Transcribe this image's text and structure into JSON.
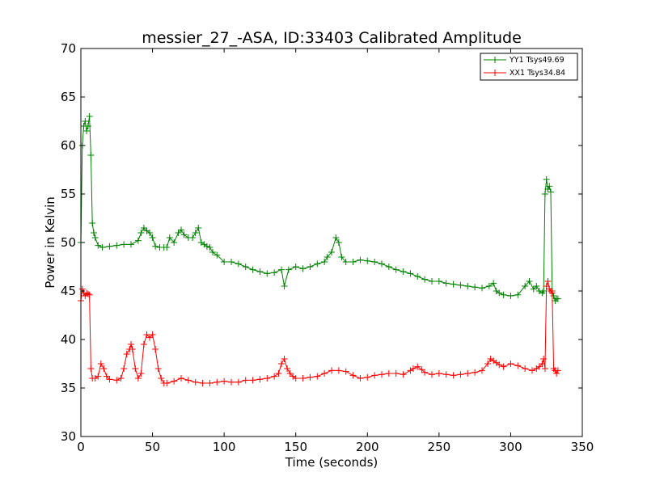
{
  "chart_data": {
    "type": "line",
    "title": "messier_27_-ASA, ID:33403 Calibrated Amplitude",
    "xlabel": "Time (seconds)",
    "ylabel": "Power in Kelvin",
    "xlim": [
      0,
      350
    ],
    "ylim": [
      30,
      70
    ],
    "xticks": [
      0,
      50,
      100,
      150,
      200,
      250,
      300,
      350
    ],
    "yticks": [
      30,
      35,
      40,
      45,
      50,
      55,
      60,
      65,
      70
    ],
    "grid": false,
    "legend_position": "top-right",
    "marker": "+",
    "series": [
      {
        "name": "YY1 Tsys49.69",
        "color": "#008000",
        "x": [
          0,
          1,
          2,
          3,
          4,
          5,
          6,
          7,
          8,
          9,
          10,
          12,
          15,
          20,
          25,
          30,
          35,
          40,
          42,
          44,
          46,
          48,
          50,
          52,
          55,
          58,
          60,
          62,
          65,
          68,
          70,
          72,
          75,
          78,
          80,
          82,
          84,
          86,
          88,
          90,
          92,
          95,
          100,
          105,
          110,
          115,
          120,
          125,
          130,
          135,
          140,
          142,
          145,
          150,
          155,
          160,
          165,
          170,
          172,
          175,
          178,
          180,
          182,
          185,
          190,
          195,
          200,
          205,
          210,
          215,
          220,
          225,
          230,
          235,
          240,
          245,
          250,
          255,
          260,
          265,
          270,
          275,
          280,
          285,
          288,
          290,
          292,
          295,
          300,
          305,
          310,
          313,
          316,
          318,
          320,
          322,
          323,
          324,
          325,
          326,
          327,
          328,
          329,
          330,
          331,
          332,
          333
        ],
        "values": [
          50,
          60,
          62,
          62.5,
          61.5,
          62,
          63,
          59,
          52,
          51,
          50.5,
          49.7,
          49.5,
          49.6,
          49.7,
          49.8,
          49.8,
          50.2,
          51,
          51.5,
          51.2,
          51,
          50.5,
          49.6,
          49.5,
          49.5,
          49.5,
          50.5,
          50,
          51,
          51.3,
          50.8,
          50.5,
          50.5,
          51,
          51.5,
          50,
          49.8,
          49.6,
          49.5,
          49,
          48.7,
          48,
          48,
          47.8,
          47.5,
          47.2,
          47,
          46.8,
          46.9,
          47.2,
          45.5,
          47.2,
          47.5,
          47.3,
          47.5,
          47.8,
          48,
          48.5,
          49,
          50.5,
          50,
          48.5,
          48,
          48,
          48.2,
          48.1,
          48,
          47.8,
          47.5,
          47.2,
          47,
          46.8,
          46.5,
          46.2,
          46,
          46,
          45.8,
          45.7,
          45.6,
          45.5,
          45.4,
          45.3,
          45.5,
          45.8,
          45,
          44.8,
          44.6,
          44.5,
          44.6,
          45.5,
          46,
          45.2,
          45.5,
          45,
          44.8,
          45,
          55,
          56.5,
          55.5,
          55.8,
          55.2,
          45,
          44.5,
          44,
          44.2,
          44.2
        ]
      },
      {
        "name": "XX1 Tsys34.84",
        "color": "#ff0000",
        "x": [
          0,
          1,
          2,
          3,
          4,
          5,
          6,
          7,
          8,
          10,
          12,
          14,
          16,
          18,
          20,
          25,
          28,
          30,
          32,
          34,
          35,
          36,
          38,
          40,
          42,
          44,
          46,
          48,
          50,
          52,
          54,
          56,
          58,
          60,
          65,
          70,
          75,
          80,
          85,
          90,
          95,
          100,
          105,
          110,
          115,
          120,
          125,
          130,
          135,
          138,
          140,
          142,
          144,
          146,
          148,
          150,
          155,
          160,
          165,
          170,
          175,
          180,
          185,
          190,
          195,
          200,
          205,
          210,
          215,
          220,
          225,
          230,
          232,
          235,
          238,
          240,
          245,
          250,
          255,
          260,
          265,
          270,
          275,
          280,
          284,
          286,
          288,
          290,
          292,
          295,
          300,
          305,
          310,
          315,
          318,
          320,
          322,
          323,
          324,
          325,
          326,
          327,
          328,
          329,
          330,
          331,
          332,
          333
        ],
        "values": [
          44,
          45.2,
          44.8,
          44.5,
          44.8,
          44.7,
          44.6,
          37,
          36,
          36,
          36.2,
          37.5,
          37,
          36.2,
          35.9,
          35.8,
          36,
          37,
          38.5,
          39,
          39.5,
          39,
          37,
          36,
          36.5,
          39.5,
          40.5,
          40.2,
          40.5,
          39,
          37,
          36,
          35.5,
          35.5,
          35.7,
          36,
          35.8,
          35.6,
          35.5,
          35.5,
          35.6,
          35.7,
          35.6,
          35.6,
          35.8,
          35.8,
          35.9,
          36,
          36.2,
          36.5,
          37.5,
          38,
          37,
          36.5,
          36.2,
          36,
          36,
          36.1,
          36.2,
          36.5,
          36.8,
          36.8,
          36.7,
          36.3,
          36,
          36.1,
          36.3,
          36.4,
          36.5,
          36.5,
          36.4,
          36.8,
          37,
          37.2,
          36.9,
          36.6,
          36.4,
          36.5,
          36.4,
          36.3,
          36.4,
          36.5,
          36.6,
          36.8,
          37.5,
          38,
          37.8,
          37.6,
          37.4,
          37.2,
          37.5,
          37.3,
          37,
          36.8,
          37,
          37.2,
          37.5,
          38,
          37,
          45.5,
          46,
          45.2,
          45,
          44.8,
          37,
          36.8,
          36.5,
          36.8
        ]
      }
    ]
  }
}
